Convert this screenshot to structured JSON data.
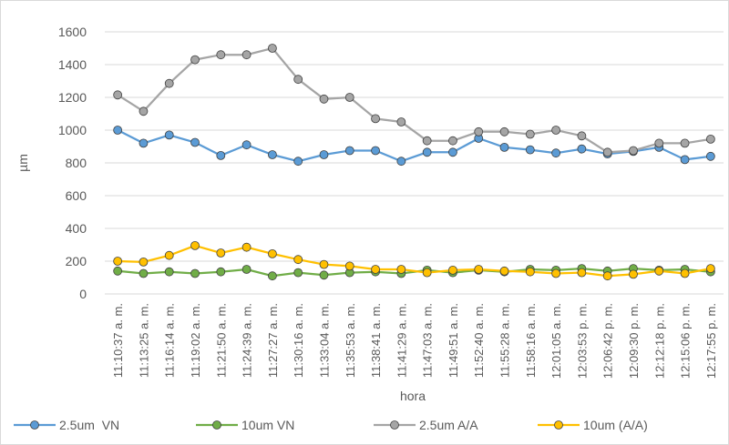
{
  "chart_data": {
    "type": "line",
    "x_label": "hora",
    "y_label": "µm",
    "categories": [
      "11:10:37 a. m.",
      "11:13:25 a. m.",
      "11:16:14 a. m.",
      "11:19:02 a. m.",
      "11:21:50 a. m.",
      "11:24:39 a. m.",
      "11:27:27 a. m.",
      "11:30:16 a. m.",
      "11:33:04 a. m.",
      "11:35:53 a. m.",
      "11:38:41 a. m.",
      "11:41:29 a. m.",
      "11:47:03 a. m.",
      "11:49:51 a. m.",
      "11:52:40 a. m.",
      "11:55:28 a. m.",
      "11:58:16 a. m.",
      "12:01:05 a. m.",
      "12:03:53 p. m.",
      "12:06:42 p. m.",
      "12:09:30 p. m.",
      "12:12:18 p. m.",
      "12:15:06 p. m.",
      "12:17:55 p. m."
    ],
    "series": [
      {
        "name": "2.5um  VN",
        "color": "#5b9bd5",
        "values": [
          1000,
          920,
          970,
          925,
          845,
          910,
          850,
          810,
          850,
          875,
          875,
          810,
          865,
          865,
          950,
          895,
          880,
          860,
          885,
          855,
          870,
          895,
          820,
          840
        ]
      },
      {
        "name": "10um VN",
        "color": "#70ad47",
        "values": [
          140,
          125,
          135,
          125,
          135,
          150,
          110,
          130,
          115,
          130,
          135,
          125,
          145,
          130,
          145,
          135,
          150,
          145,
          155,
          140,
          155,
          145,
          150,
          135
        ]
      },
      {
        "name": "2.5um A/A",
        "color": "#a5a5a5",
        "values": [
          1215,
          1115,
          1285,
          1430,
          1460,
          1460,
          1500,
          1310,
          1190,
          1200,
          1070,
          1050,
          935,
          935,
          990,
          990,
          975,
          1000,
          965,
          865,
          875,
          920,
          920,
          945
        ]
      },
      {
        "name": "10um (A/A)",
        "color": "#ffc000",
        "values": [
          200,
          195,
          235,
          295,
          250,
          285,
          245,
          210,
          180,
          170,
          150,
          150,
          130,
          145,
          150,
          140,
          135,
          125,
          130,
          110,
          120,
          140,
          125,
          155
        ]
      }
    ],
    "ylim": [
      0,
      1600
    ],
    "yticks": [
      0,
      200,
      400,
      600,
      800,
      1000,
      1200,
      1400,
      1600
    ],
    "grid": true,
    "legend": "bottom"
  }
}
